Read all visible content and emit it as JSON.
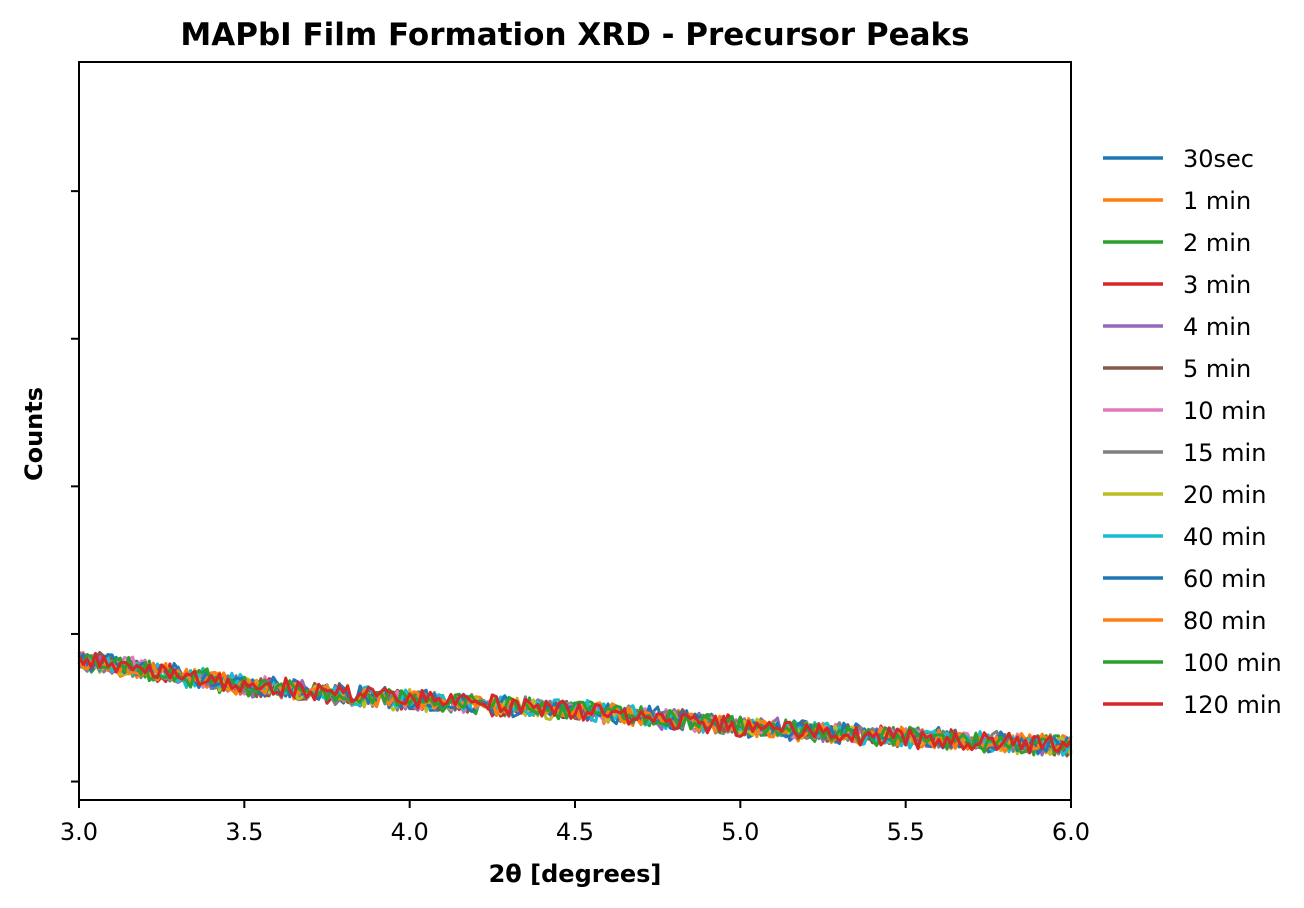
{
  "chart_data": {
    "type": "line",
    "title": "MAPbI Film Formation XRD - Precursor Peaks",
    "xlabel": "2θ [degrees]",
    "ylabel": "Counts",
    "xlim": [
      3.0,
      6.0
    ],
    "ylim": [
      0,
      1
    ],
    "x_ticks": [
      "3.0",
      "3.5",
      "4.0",
      "4.5",
      "5.0",
      "5.5",
      "6.0"
    ],
    "y_tick_values": [
      0.025,
      0.225,
      0.425,
      0.625,
      0.825
    ],
    "y_tick_labels_visible": false,
    "grid": false,
    "legend_position": "right, outside plot",
    "trend": {
      "x": [
        3.0,
        3.5,
        4.0,
        4.5,
        5.0,
        5.5,
        6.0
      ],
      "y": [
        0.19,
        0.155,
        0.135,
        0.122,
        0.1,
        0.085,
        0.073
      ]
    },
    "noise_amplitude": 0.012,
    "series": [
      {
        "name": "30sec",
        "color": "#1f77b4"
      },
      {
        "name": "1 min",
        "color": "#ff7f0e"
      },
      {
        "name": "2 min",
        "color": "#2ca02c"
      },
      {
        "name": "3 min",
        "color": "#d62728"
      },
      {
        "name": "4 min",
        "color": "#9467bd"
      },
      {
        "name": "5 min",
        "color": "#8c564b"
      },
      {
        "name": "10 min",
        "color": "#e377c2"
      },
      {
        "name": "15 min",
        "color": "#7f7f7f"
      },
      {
        "name": "20 min",
        "color": "#bcbd22"
      },
      {
        "name": "40 min",
        "color": "#17becf"
      },
      {
        "name": "60 min",
        "color": "#1f77b4"
      },
      {
        "name": "80 min",
        "color": "#ff7f0e"
      },
      {
        "name": "100 min",
        "color": "#2ca02c"
      },
      {
        "name": "120 min",
        "color": "#d62728"
      }
    ]
  }
}
